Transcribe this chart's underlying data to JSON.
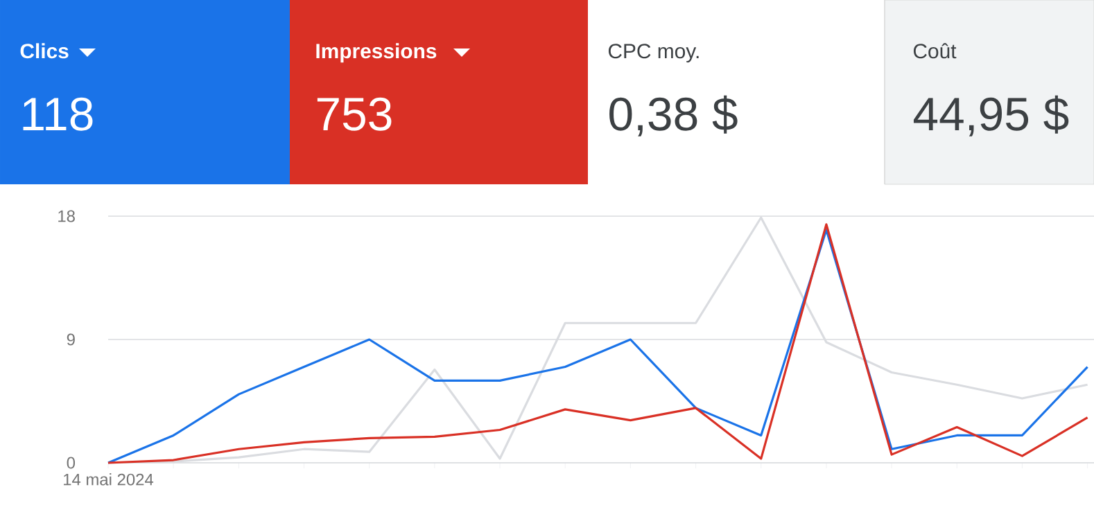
{
  "chart_data": [
    {
      "type": "other",
      "annotations": [
        "Clics",
        "118",
        "Impressions",
        "753",
        "CPC moy.",
        "0,38 $",
        "Coût",
        "44,95 $"
      ],
      "colors": [
        "#1a73e8",
        "#d93025",
        "#ffffff",
        "#f1f3f4"
      ]
    },
    {
      "type": "line",
      "categories": [
        "14 mai 2024",
        null,
        null,
        null,
        null,
        null,
        null,
        null,
        null,
        null,
        null,
        null,
        null,
        null,
        null,
        null
      ],
      "ylim": [
        0,
        18
      ],
      "yticks": [
        0,
        9,
        18
      ],
      "grid": "y",
      "series": [
        {
          "color": "#dadce0",
          "values": [
            0,
            0.1,
            0.4,
            1,
            0.8,
            6.8,
            0.3,
            10.2,
            10.2,
            10.2,
            17.9,
            8.8,
            6.6,
            5.7,
            4.7,
            5.7
          ]
        },
        {
          "color": "#1a73e8",
          "values": [
            0,
            2,
            5,
            7,
            9,
            6,
            6,
            7,
            9,
            4,
            2,
            17,
            1,
            2,
            2,
            7
          ]
        },
        {
          "color": "#d93025",
          "values": [
            0,
            0.2,
            1,
            1.5,
            1.8,
            1.9,
            2.4,
            3.9,
            3.1,
            4,
            0.3,
            17.4,
            0.6,
            2.6,
            0.5,
            3.3
          ]
        }
      ]
    }
  ]
}
